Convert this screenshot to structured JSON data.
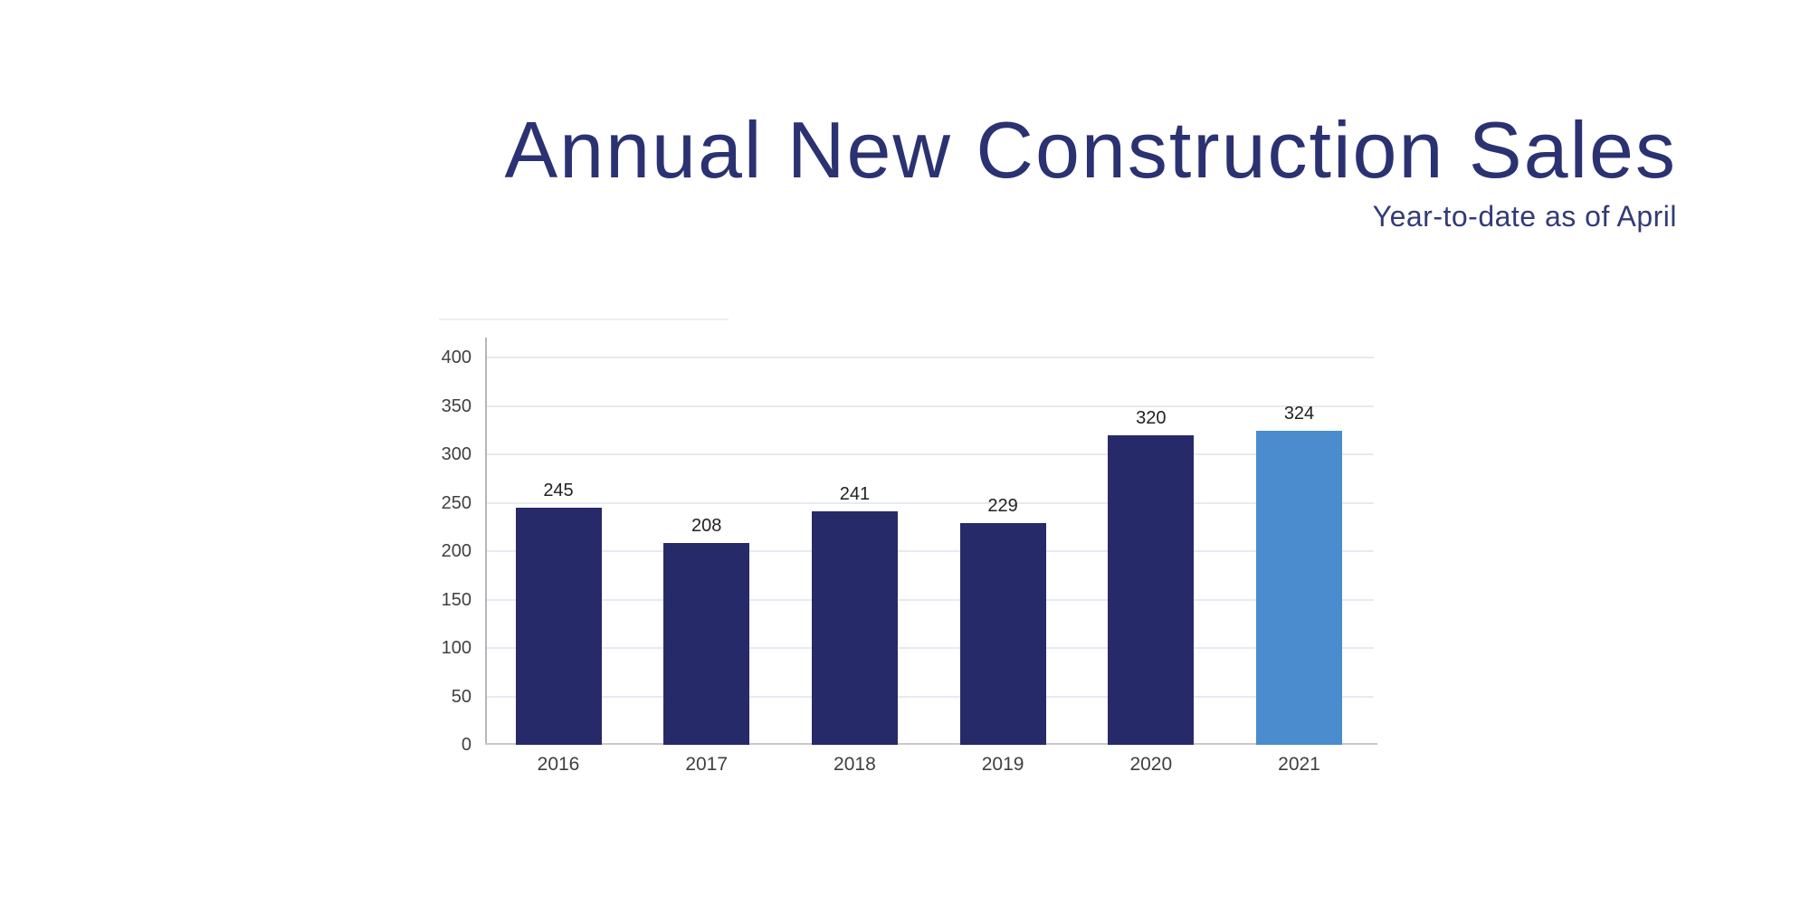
{
  "header": {
    "title": "Annual New Construction Sales",
    "subtitle": "Year-to-date as of April"
  },
  "colors": {
    "background": "#ffffff",
    "title": "#2b3272",
    "subtitle": "#333b76",
    "bar_default": "#272a68",
    "bar_highlight": "#4a8ccd",
    "gridline": "#e6eaf1",
    "x_axis_line": "#c9c9c9",
    "y_axis_line": "#b4b7bd",
    "tick_label": "#3f3f3f",
    "value_label": "#212121",
    "frame_edge": "#efefef"
  },
  "chart_data": {
    "type": "bar",
    "title": "Annual New Construction Sales",
    "subtitle": "Year-to-date as of April",
    "categories": [
      "2016",
      "2017",
      "2018",
      "2019",
      "2020",
      "2021"
    ],
    "values": [
      245,
      208,
      241,
      229,
      320,
      324
    ],
    "data_labels": [
      "245",
      "208",
      "241",
      "229",
      "320",
      "324"
    ],
    "bar_colors": [
      "#272a68",
      "#272a68",
      "#272a68",
      "#272a68",
      "#272a68",
      "#4a8ccd"
    ],
    "highlighted_category": "2021",
    "xlabel": "",
    "ylabel": "",
    "ylim": [
      0,
      400
    ],
    "yticks": [
      0,
      50,
      100,
      150,
      200,
      250,
      300,
      350,
      400
    ],
    "grid": "horizontal",
    "legend": "none"
  }
}
